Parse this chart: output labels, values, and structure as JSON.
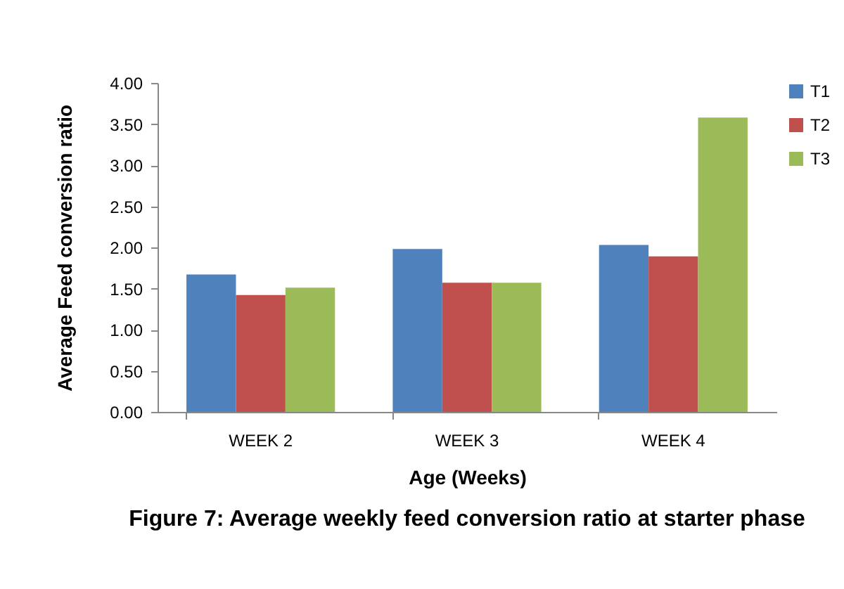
{
  "chart_data": {
    "type": "bar",
    "title": "Figure 7: Average weekly feed conversion ratio at starter phase",
    "xlabel": "Age (Weeks)",
    "ylabel": "Average  Feed conversion ratio",
    "categories": [
      "WEEK  2",
      "WEEK  3",
      "WEEK  4"
    ],
    "series": [
      {
        "name": "T1",
        "color": "#4f81bd",
        "values": [
          1.67,
          1.98,
          2.03
        ]
      },
      {
        "name": "T2",
        "color": "#c0504d",
        "values": [
          1.42,
          1.57,
          1.89
        ]
      },
      {
        "name": "T3",
        "color": "#9bbb59",
        "values": [
          1.51,
          1.57,
          3.58
        ]
      }
    ],
    "ylim": [
      0,
      4
    ],
    "yticks": [
      {
        "value": 0,
        "label": "0.00"
      },
      {
        "value": 0.5,
        "label": "0.50"
      },
      {
        "value": 1,
        "label": "1.00"
      },
      {
        "value": 1.5,
        "label": "1.50"
      },
      {
        "value": 2,
        "label": "2.00"
      },
      {
        "value": 2.5,
        "label": "2.50"
      },
      {
        "value": 3,
        "label": "3.00"
      },
      {
        "value": 3.5,
        "label": "3.50"
      },
      {
        "value": 4,
        "label": "4.00"
      }
    ],
    "grid": false,
    "legend": "right"
  }
}
